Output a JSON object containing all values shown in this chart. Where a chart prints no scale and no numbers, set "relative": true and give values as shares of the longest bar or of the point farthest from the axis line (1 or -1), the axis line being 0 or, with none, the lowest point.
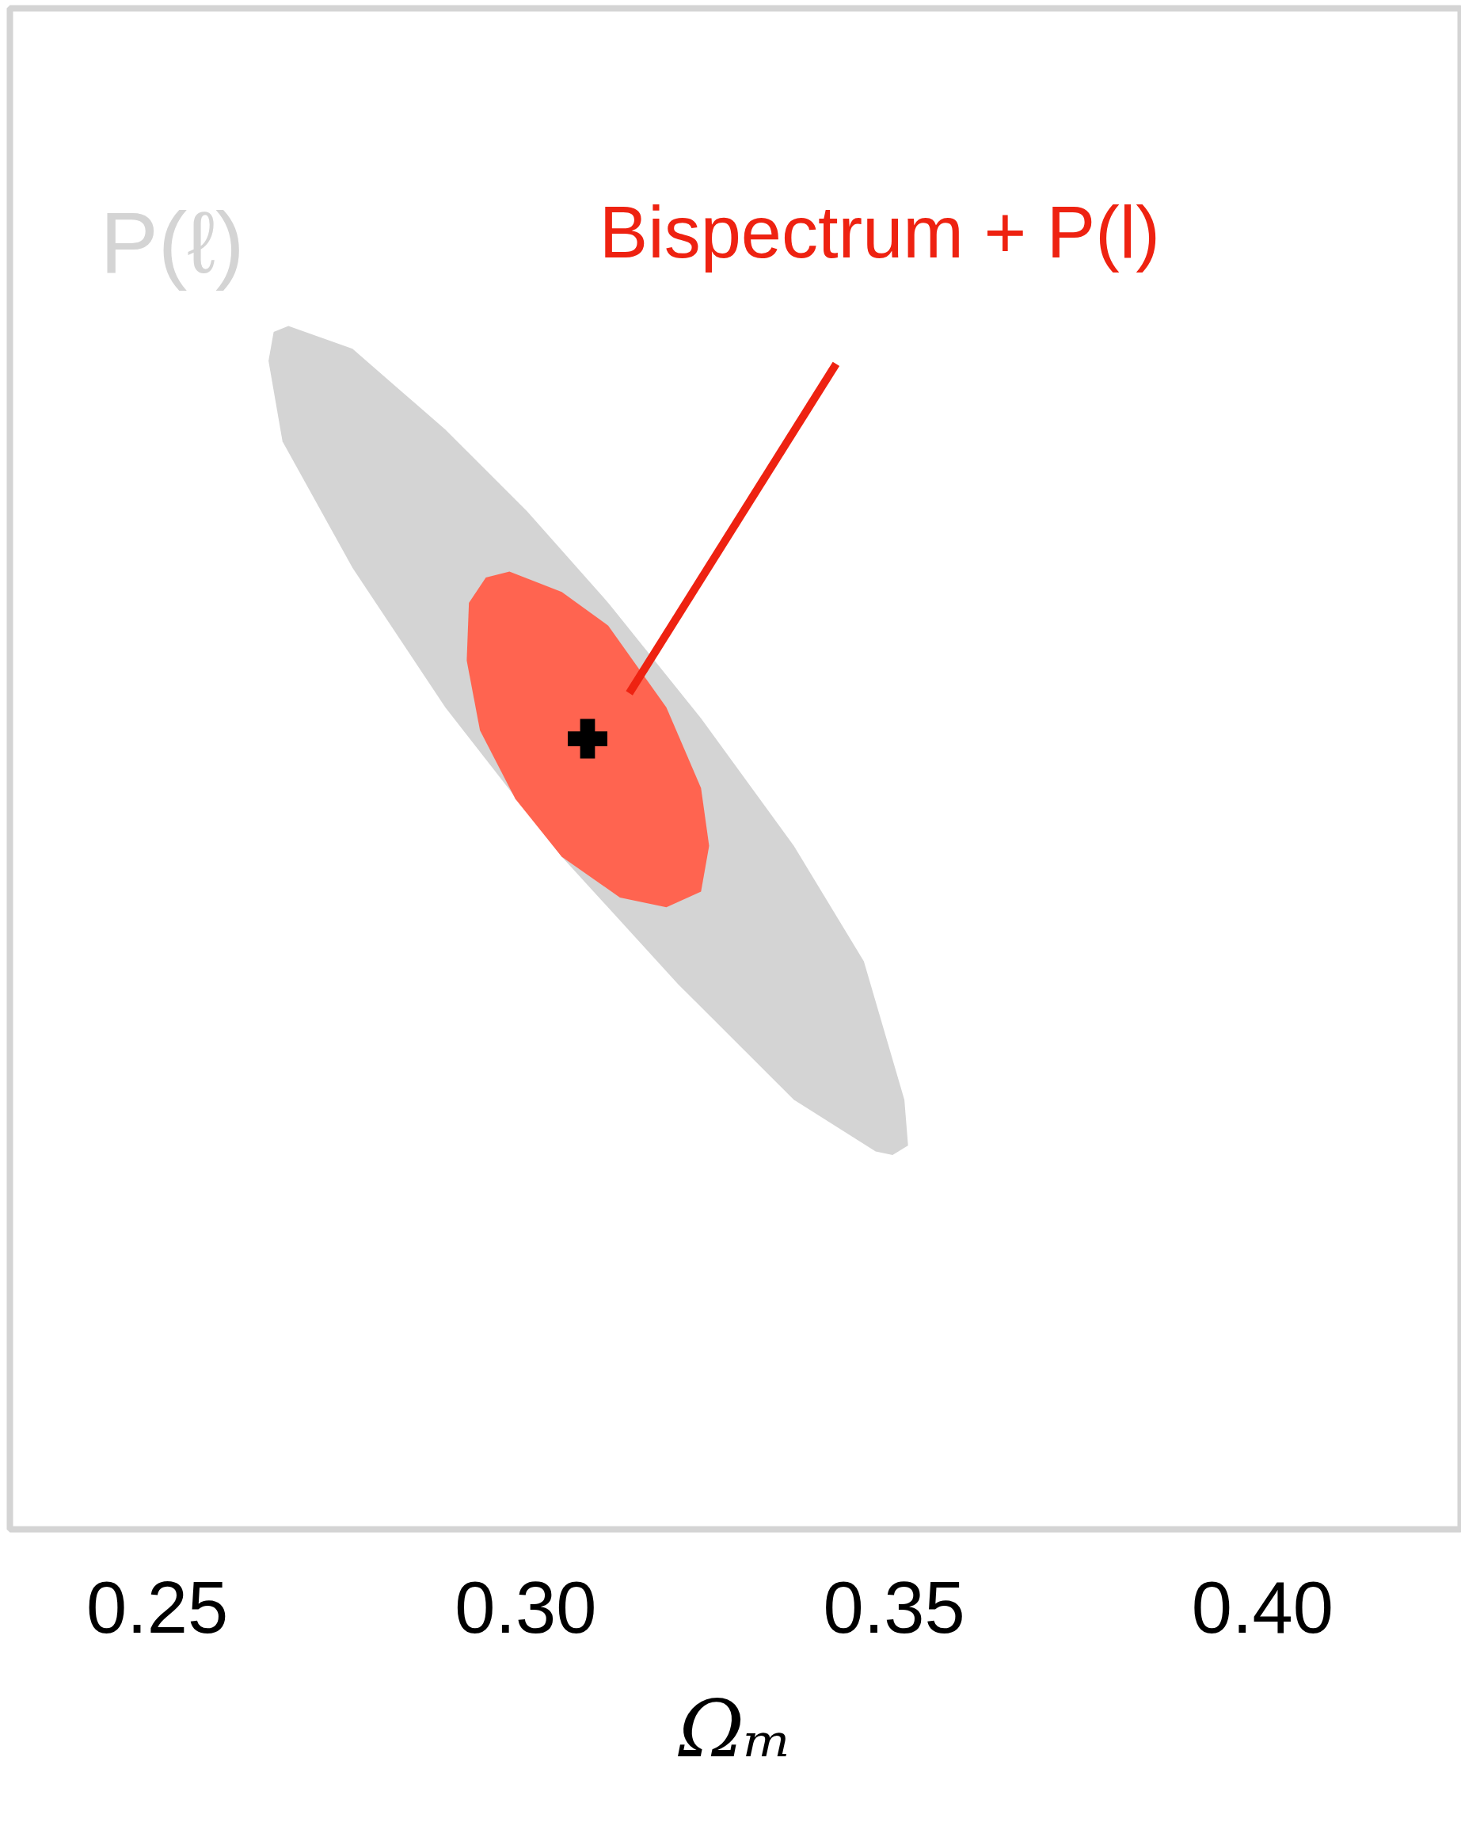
{
  "chart_data": {
    "type": "area",
    "relative": true,
    "xlabel": "Ωₘ",
    "xlim": [
      0.23,
      0.427
    ],
    "xticks": [
      {
        "value": 0.25,
        "label": "0.25"
      },
      {
        "value": 0.3,
        "label": "0.30"
      },
      {
        "value": 0.35,
        "label": "0.35"
      },
      {
        "value": 0.4,
        "label": "0.40"
      }
    ],
    "tick_labels": "x",
    "series": [
      {
        "name": "P(ℓ)",
        "color": "#d4d4d4",
        "x": [
          0.2658,
          0.2678,
          0.2765,
          0.2891,
          0.3002,
          0.3112,
          0.3238,
          0.3364,
          0.3459,
          0.3514,
          0.3519,
          0.3498,
          0.3475,
          0.3364,
          0.3207,
          0.3049,
          0.2891,
          0.2765,
          0.267,
          0.2651
        ],
        "values": [
          0.995,
          1.0,
          0.981,
          0.914,
          0.846,
          0.77,
          0.674,
          0.568,
          0.472,
          0.357,
          0.319,
          0.311,
          0.314,
          0.357,
          0.453,
          0.559,
          0.683,
          0.799,
          0.904,
          0.971
        ]
      },
      {
        "name": "Bispectrum + P(l)",
        "color": "#ff6450",
        "x": [
          0.2978,
          0.3049,
          0.3112,
          0.3191,
          0.3238,
          0.3249,
          0.3238,
          0.3191,
          0.3128,
          0.3049,
          0.2986,
          0.2938,
          0.292,
          0.2923,
          0.2946
        ],
        "values": [
          0.796,
          0.779,
          0.751,
          0.683,
          0.616,
          0.568,
          0.53,
          0.517,
          0.525,
          0.559,
          0.607,
          0.664,
          0.722,
          0.77,
          0.791
        ]
      },
      {
        "type": "scatter",
        "marker": "cross",
        "color": "#000000",
        "x": [
          0.3084
        ],
        "values": [
          0.657
        ]
      }
    ]
  }
}
